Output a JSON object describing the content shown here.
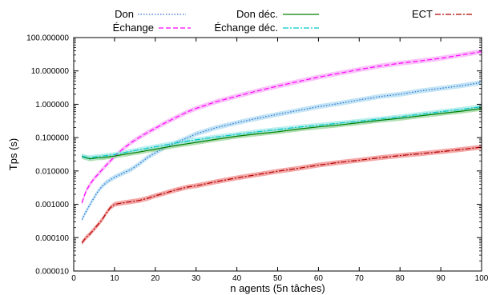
{
  "chart_data": {
    "type": "line",
    "xlabel": "n agents (5n tâches)",
    "ylabel": "Tps (s)",
    "xlim": [
      0,
      100
    ],
    "ylim": [
      1e-05,
      100
    ],
    "yscale": "log",
    "grid": false,
    "legend_position": "top",
    "x_ticks": [
      0,
      10,
      20,
      30,
      40,
      50,
      60,
      70,
      80,
      90,
      100
    ],
    "x_tick_labels": [
      "0",
      "10",
      "20",
      "30",
      "40",
      "50",
      "60",
      "70",
      "80",
      "90",
      "100"
    ],
    "y_ticks": [
      1e-05,
      0.0001,
      0.001,
      0.01,
      0.1,
      1,
      10,
      100
    ],
    "y_tick_labels": [
      "0.000010",
      "0.000100",
      "0.001000",
      "0.010000",
      "0.100000",
      "1.000000",
      "10.000000",
      "100.000000"
    ],
    "x": [
      2,
      3,
      4,
      5,
      6,
      7,
      8,
      9,
      10,
      12,
      14,
      16,
      18,
      20,
      22,
      25,
      28,
      30,
      35,
      40,
      45,
      50,
      55,
      60,
      65,
      70,
      75,
      80,
      85,
      90,
      95,
      100
    ],
    "series": [
      {
        "name": "Don",
        "color": "#3070d8",
        "band_color": "#a8d8f0",
        "style": "dotted",
        "values": [
          0.00035,
          0.0006,
          0.001,
          0.0016,
          0.0025,
          0.0035,
          0.0045,
          0.0055,
          0.0065,
          0.0085,
          0.011,
          0.016,
          0.025,
          0.035,
          0.048,
          0.07,
          0.1,
          0.13,
          0.2,
          0.28,
          0.38,
          0.5,
          0.65,
          0.85,
          1.05,
          1.35,
          1.7,
          2.0,
          2.5,
          3.0,
          3.6,
          4.5
        ]
      },
      {
        "name": "Échange",
        "color": "#ff00ff",
        "band_color": "#f8a8f8",
        "style": "dashed",
        "values": [
          0.0011,
          0.0025,
          0.004,
          0.006,
          0.008,
          0.011,
          0.015,
          0.02,
          0.027,
          0.045,
          0.07,
          0.1,
          0.14,
          0.19,
          0.26,
          0.4,
          0.6,
          0.75,
          1.2,
          1.75,
          2.5,
          3.5,
          4.8,
          6.5,
          8.5,
          11.0,
          14.0,
          17.0,
          20.0,
          24.0,
          30.0,
          38.0
        ]
      },
      {
        "name": "Don déc.",
        "color": "#008000",
        "band_color": "#90d090",
        "style": "solid",
        "values": [
          0.027,
          0.025,
          0.023,
          0.024,
          0.025,
          0.025,
          0.026,
          0.027,
          0.028,
          0.031,
          0.034,
          0.037,
          0.041,
          0.045,
          0.05,
          0.058,
          0.066,
          0.072,
          0.09,
          0.11,
          0.13,
          0.15,
          0.18,
          0.21,
          0.24,
          0.28,
          0.33,
          0.38,
          0.45,
          0.53,
          0.62,
          0.75
        ]
      },
      {
        "name": "Échange déc.",
        "color": "#00c8c8",
        "band_color": "#a0e8e8",
        "style": "dashdot",
        "values": [
          0.028,
          0.026,
          0.025,
          0.026,
          0.027,
          0.028,
          0.029,
          0.03,
          0.031,
          0.035,
          0.039,
          0.043,
          0.048,
          0.053,
          0.059,
          0.069,
          0.079,
          0.086,
          0.105,
          0.125,
          0.15,
          0.175,
          0.205,
          0.235,
          0.27,
          0.31,
          0.36,
          0.42,
          0.5,
          0.6,
          0.7,
          0.85
        ]
      },
      {
        "name": "ECT",
        "color": "#b00000",
        "band_color": "#f08080",
        "style": "dashdot",
        "values": [
          7e-05,
          0.0001,
          0.00013,
          0.00018,
          0.00025,
          0.00035,
          0.00055,
          0.0008,
          0.001,
          0.0011,
          0.0012,
          0.0013,
          0.0015,
          0.0018,
          0.0021,
          0.0027,
          0.0033,
          0.0036,
          0.0048,
          0.0062,
          0.0078,
          0.0098,
          0.012,
          0.015,
          0.018,
          0.021,
          0.025,
          0.029,
          0.033,
          0.038,
          0.044,
          0.052
        ]
      }
    ]
  }
}
